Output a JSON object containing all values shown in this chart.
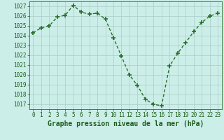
{
  "x": [
    0,
    1,
    2,
    3,
    4,
    5,
    6,
    7,
    8,
    9,
    10,
    11,
    12,
    13,
    14,
    15,
    16,
    17,
    18,
    19,
    20,
    21,
    22,
    23
  ],
  "y": [
    1024.3,
    1024.8,
    1025.0,
    1025.9,
    1026.1,
    1027.1,
    1026.4,
    1026.2,
    1026.3,
    1025.7,
    1023.8,
    1021.9,
    1020.0,
    1018.9,
    1017.5,
    1017.0,
    1016.85,
    1020.9,
    1022.2,
    1023.3,
    1024.4,
    1025.35,
    1026.0,
    1026.3
  ],
  "line_color": "#2a6e2a",
  "marker": "+",
  "marker_size": 5,
  "marker_lw": 1.2,
  "line_width": 1.0,
  "bg_color": "#cceee8",
  "grid_color": "#aaccc8",
  "xlabel": "Graphe pression niveau de la mer (hPa)",
  "ylim": [
    1016.5,
    1027.5
  ],
  "yticks": [
    1017,
    1018,
    1019,
    1020,
    1021,
    1022,
    1023,
    1024,
    1025,
    1026,
    1027
  ],
  "xlim": [
    -0.5,
    23.5
  ],
  "xticks": [
    0,
    1,
    2,
    3,
    4,
    5,
    6,
    7,
    8,
    9,
    10,
    11,
    12,
    13,
    14,
    15,
    16,
    17,
    18,
    19,
    20,
    21,
    22,
    23
  ],
  "xlabel_fontsize": 7.0,
  "tick_fontsize": 5.5,
  "label_color": "#1a5c1a",
  "spine_color": "#2a6e2a"
}
